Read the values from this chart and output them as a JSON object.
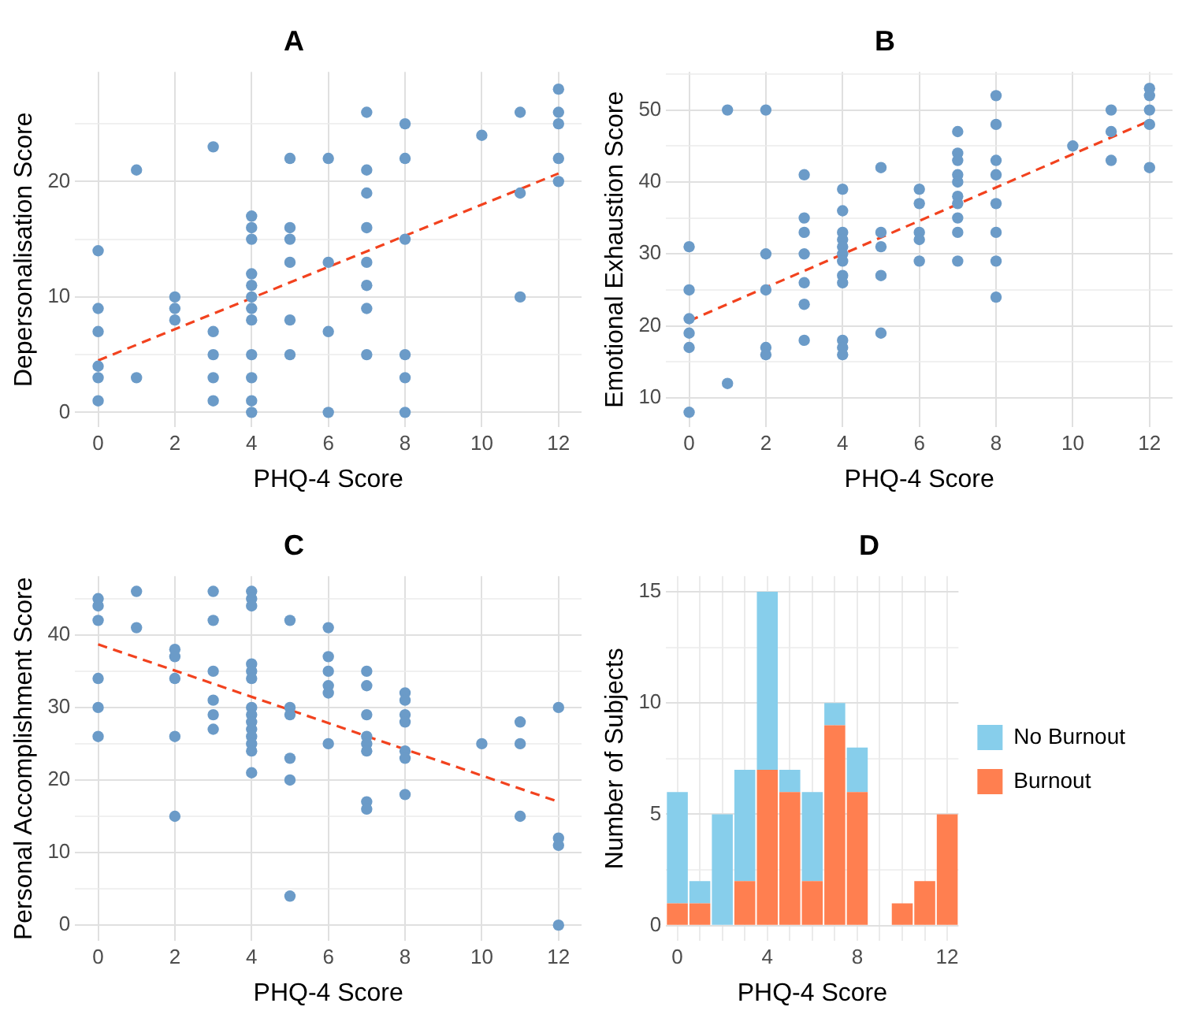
{
  "chart_data": [
    {
      "type": "scatter",
      "title": "A",
      "xlabel": "PHQ-4 Score",
      "ylabel": "Depersonalisation Score",
      "xlim": [
        -0.6,
        12.6
      ],
      "xticks": [
        0,
        2,
        4,
        6,
        8,
        10,
        12
      ],
      "ylim": [
        -1.3,
        29.5
      ],
      "yticks": [
        0,
        {
          "value": 5,
          "label": null
        },
        10,
        {
          "value": 15,
          "label": null
        },
        20,
        {
          "value": 25,
          "label": null
        }
      ],
      "grid": true,
      "marker": "circle",
      "series": [
        {
          "color": "#6b9bc8",
          "x": [
            0,
            0,
            0,
            0,
            0,
            0,
            1,
            1,
            2,
            2,
            2,
            3,
            3,
            3,
            3,
            3,
            4,
            4,
            4,
            4,
            4,
            4,
            4,
            4,
            4,
            4,
            4,
            4,
            5,
            5,
            5,
            5,
            5,
            5,
            6,
            6,
            6,
            6,
            7,
            7,
            7,
            7,
            7,
            7,
            7,
            7,
            8,
            8,
            8,
            8,
            8,
            8,
            10,
            11,
            11,
            11,
            12,
            12,
            12,
            12,
            12
          ],
          "values": [
            14,
            9,
            7,
            4,
            3,
            1,
            21,
            3,
            10,
            9,
            8,
            23,
            7,
            5,
            3,
            1,
            17,
            16,
            15,
            12,
            11,
            10,
            9,
            8,
            5,
            3,
            1,
            0,
            22,
            16,
            15,
            13,
            8,
            5,
            22,
            13,
            7,
            0,
            26,
            21,
            19,
            16,
            13,
            11,
            9,
            5,
            25,
            22,
            15,
            5,
            3,
            0,
            24,
            26,
            19,
            10,
            28,
            26,
            25,
            22,
            20
          ]
        },
        {
          "type": "line",
          "marker": "none",
          "line_style": "dashed",
          "color": "#f2421e",
          "x": [
            0,
            12
          ],
          "values": [
            4.5,
            20.7
          ]
        }
      ]
    },
    {
      "type": "scatter",
      "title": "B",
      "xlabel": "PHQ-4 Score",
      "ylabel": "Emotional Exhaustion Score",
      "xlim": [
        -0.6,
        12.6
      ],
      "xticks": [
        0,
        2,
        4,
        6,
        8,
        10,
        12
      ],
      "ylim": [
        5.9,
        55.3
      ],
      "yticks": [
        10,
        {
          "value": 15,
          "label": null
        },
        20,
        {
          "value": 25,
          "label": null
        },
        30,
        {
          "value": 35,
          "label": null
        },
        40,
        {
          "value": 45,
          "label": null
        },
        50,
        {
          "value": 55,
          "label": null
        }
      ],
      "grid": true,
      "marker": "circle",
      "series": [
        {
          "color": "#6b9bc8",
          "x": [
            0,
            0,
            0,
            0,
            0,
            0,
            1,
            1,
            2,
            2,
            2,
            2,
            2,
            3,
            3,
            3,
            3,
            3,
            3,
            3,
            4,
            4,
            4,
            4,
            4,
            4,
            4,
            4,
            4,
            4,
            4,
            4,
            5,
            5,
            5,
            5,
            5,
            6,
            6,
            6,
            6,
            6,
            7,
            7,
            7,
            7,
            7,
            7,
            7,
            7,
            7,
            7,
            8,
            8,
            8,
            8,
            8,
            8,
            8,
            8,
            10,
            11,
            11,
            11,
            12,
            12,
            12,
            12,
            12
          ],
          "values": [
            31,
            25,
            21,
            19,
            17,
            8,
            50,
            12,
            50,
            30,
            25,
            17,
            16,
            41,
            35,
            33,
            30,
            26,
            23,
            18,
            39,
            36,
            33,
            32,
            31,
            30,
            29,
            27,
            26,
            18,
            17,
            16,
            42,
            33,
            31,
            27,
            19,
            39,
            37,
            33,
            32,
            29,
            47,
            44,
            43,
            41,
            40,
            38,
            37,
            35,
            33,
            29,
            52,
            48,
            43,
            41,
            37,
            33,
            29,
            24,
            45,
            50,
            47,
            43,
            53,
            52,
            50,
            48,
            42
          ]
        },
        {
          "type": "line",
          "marker": "none",
          "line_style": "dashed",
          "color": "#f2421e",
          "x": [
            0,
            12
          ],
          "values": [
            20.7,
            48.5
          ]
        }
      ]
    },
    {
      "type": "scatter",
      "title": "C",
      "xlabel": "PHQ-4 Score",
      "ylabel": "Personal Accomplishment Score",
      "xlim": [
        -0.6,
        12.6
      ],
      "xticks": [
        0,
        2,
        4,
        6,
        8,
        10,
        12
      ],
      "ylim": [
        -2.2,
        48.1
      ],
      "yticks": [
        0,
        {
          "value": 5,
          "label": null
        },
        10,
        {
          "value": 15,
          "label": null
        },
        20,
        {
          "value": 25,
          "label": null
        },
        30,
        {
          "value": 35,
          "label": null
        },
        40,
        {
          "value": 45,
          "label": null
        }
      ],
      "grid": true,
      "marker": "circle",
      "series": [
        {
          "color": "#6b9bc8",
          "x": [
            0,
            0,
            0,
            0,
            0,
            0,
            1,
            1,
            2,
            2,
            2,
            2,
            2,
            3,
            3,
            3,
            3,
            3,
            3,
            4,
            4,
            4,
            4,
            4,
            4,
            4,
            4,
            4,
            4,
            4,
            4,
            4,
            4,
            5,
            5,
            5,
            5,
            5,
            5,
            6,
            6,
            6,
            6,
            6,
            6,
            7,
            7,
            7,
            7,
            7,
            7,
            7,
            7,
            8,
            8,
            8,
            8,
            8,
            8,
            8,
            10,
            11,
            11,
            11,
            12,
            12,
            12,
            12
          ],
          "values": [
            45,
            44,
            42,
            34,
            30,
            26,
            46,
            41,
            38,
            37,
            34,
            26,
            15,
            46,
            42,
            35,
            31,
            29,
            27,
            46,
            45,
            44,
            36,
            35,
            34,
            30,
            29,
            28,
            27,
            26,
            25,
            24,
            21,
            42,
            30,
            29,
            23,
            20,
            4,
            41,
            37,
            35,
            33,
            32,
            25,
            35,
            33,
            29,
            26,
            25,
            24,
            17,
            16,
            32,
            31,
            29,
            28,
            24,
            23,
            18,
            25,
            28,
            25,
            15,
            30,
            12,
            11,
            0
          ]
        },
        {
          "type": "line",
          "marker": "none",
          "line_style": "dashed",
          "color": "#f2421e",
          "x": [
            0,
            12
          ],
          "values": [
            38.7,
            17
          ]
        }
      ]
    },
    {
      "type": "bar",
      "stacked": true,
      "title": "D",
      "xlabel": "PHQ-4 Score",
      "ylabel": "Number of Subjects",
      "categories": [
        "0",
        null,
        null,
        null,
        "4",
        null,
        null,
        null,
        "8",
        null,
        null,
        null,
        "12"
      ],
      "ylim": [
        -0.7,
        15.7
      ],
      "yticks": [
        0,
        {
          "value": 2.5,
          "label": null
        },
        5,
        {
          "value": 7.5,
          "label": null
        },
        10,
        {
          "value": 12.5,
          "label": null
        },
        15
      ],
      "grid": true,
      "legend": "right",
      "series": [
        {
          "name": "Burnout",
          "color": "#ff7f50",
          "values": [
            1,
            1,
            0,
            2,
            7,
            6,
            2,
            9,
            6,
            0,
            1,
            2,
            5
          ]
        },
        {
          "name": "No Burnout",
          "color": "#87ceeb",
          "values": [
            5,
            1,
            5,
            5,
            8,
            1,
            4,
            1,
            2,
            0,
            0,
            0,
            0
          ]
        }
      ]
    }
  ]
}
